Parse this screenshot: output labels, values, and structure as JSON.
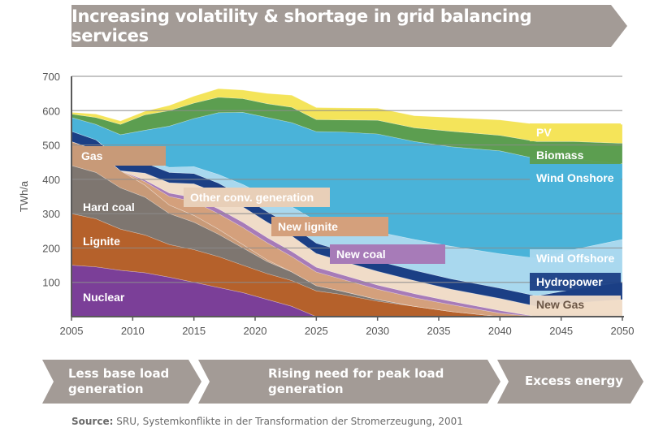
{
  "header": {
    "title": "Increasing volatility & shortage in grid balancing services"
  },
  "phases": [
    {
      "label": "Less base load generation"
    },
    {
      "label": "Rising need for peak load generation"
    },
    {
      "label": "Excess energy"
    }
  ],
  "source": {
    "prefix": "Source:",
    "text": "SRU, Systemkonflikte in der Transformation der Stromerzeugung, 2001"
  },
  "chart_data": {
    "type": "area",
    "stacked": true,
    "title": "",
    "xlabel": "",
    "ylabel": "TWh/a",
    "xlim": [
      2005,
      2050
    ],
    "ylim": [
      0,
      700
    ],
    "xticks": [
      2005,
      2010,
      2015,
      2020,
      2025,
      2030,
      2035,
      2040,
      2045,
      2050
    ],
    "yticks": [
      100,
      200,
      300,
      400,
      500,
      600,
      700
    ],
    "grid": true,
    "x": [
      2005,
      2007,
      2009,
      2011,
      2013,
      2015,
      2017,
      2019,
      2021,
      2023,
      2025,
      2027,
      2030,
      2033,
      2036,
      2040,
      2043,
      2046,
      2050
    ],
    "series": [
      {
        "name": "Nuclear",
        "color": "#7b3f98",
        "label_color": "#ffffff",
        "labeled": true,
        "values": [
          150,
          145,
          135,
          128,
          115,
          100,
          85,
          70,
          50,
          30,
          0,
          0,
          0,
          0,
          0,
          0,
          0,
          0,
          0
        ]
      },
      {
        "name": "Lignite",
        "color": "#b5612b",
        "label_color": "#ffffff",
        "labeled": true,
        "values": [
          150,
          140,
          120,
          110,
          95,
          95,
          90,
          80,
          75,
          75,
          75,
          65,
          45,
          30,
          15,
          0,
          0,
          0,
          0
        ]
      },
      {
        "name": "Hard coal",
        "color": "#7e7670",
        "label_color": "#ffffff",
        "labeled": true,
        "values": [
          140,
          135,
          120,
          110,
          90,
          80,
          65,
          50,
          35,
          25,
          15,
          10,
          5,
          0,
          0,
          0,
          0,
          0,
          0
        ]
      },
      {
        "name": "Gas",
        "color": "#c89a78",
        "label_color": "#ffffff",
        "labeled": true,
        "values": [
          70,
          65,
          50,
          35,
          25,
          20,
          15,
          10,
          5,
          0,
          0,
          0,
          0,
          0,
          0,
          0,
          0,
          0,
          0
        ]
      },
      {
        "name": "Other conv. generation",
        "color": "#e8cfb8",
        "label_color": "#ffffff",
        "labeled": true,
        "values": [
          0,
          0,
          0,
          0,
          0,
          0,
          0,
          0,
          0,
          0,
          0,
          0,
          0,
          0,
          0,
          0,
          0,
          0,
          0
        ]
      },
      {
        "name": "New lignite",
        "color": "#d4a07c",
        "label_color": "#ffffff",
        "labeled": true,
        "values": [
          0,
          0,
          0,
          10,
          25,
          40,
          45,
          50,
          50,
          45,
          40,
          35,
          30,
          25,
          20,
          10,
          0,
          0,
          0
        ]
      },
      {
        "name": "New coal",
        "color": "#a77bb8",
        "label_color": "#ffffff",
        "labeled": true,
        "values": [
          0,
          0,
          0,
          5,
          10,
          12,
          14,
          15,
          15,
          15,
          14,
          13,
          12,
          12,
          10,
          8,
          0,
          0,
          0
        ]
      },
      {
        "name": "New Gas",
        "color": "#f0dcc8",
        "label_color": "#6b5646",
        "labeled": true,
        "values": [
          0,
          0,
          0,
          20,
          30,
          40,
          45,
          45,
          45,
          45,
          40,
          40,
          40,
          38,
          35,
          35,
          30,
          40,
          50
        ]
      },
      {
        "name": "Hydropower",
        "color": "#1b3f85",
        "label_color": "#ffffff",
        "labeled": true,
        "values": [
          30,
          30,
          30,
          30,
          30,
          30,
          30,
          30,
          30,
          30,
          30,
          30,
          30,
          30,
          30,
          30,
          30,
          40,
          50
        ]
      },
      {
        "name": "Wind Offshore",
        "color": "#a9d8ee",
        "label_color": "#ffffff",
        "labeled": true,
        "values": [
          0,
          0,
          5,
          10,
          15,
          20,
          25,
          35,
          45,
          55,
          65,
          75,
          85,
          90,
          95,
          100,
          110,
          115,
          125
        ]
      },
      {
        "name": "Wind Onshore",
        "color": "#4ab3d9",
        "label_color": "#ffffff",
        "labeled": true,
        "values": [
          40,
          45,
          70,
          85,
          120,
          140,
          180,
          210,
          230,
          245,
          260,
          270,
          285,
          285,
          290,
          300,
          290,
          265,
          220
        ]
      },
      {
        "name": "Biomass",
        "color": "#5c9e50",
        "label_color": "#ffffff",
        "labeled": true,
        "values": [
          10,
          20,
          30,
          45,
          45,
          45,
          45,
          40,
          40,
          45,
          35,
          35,
          40,
          40,
          45,
          45,
          50,
          50,
          60
        ]
      },
      {
        "name": "PV",
        "color": "#f4e45a",
        "label_color": "#ffffff",
        "labeled": true,
        "values": [
          5,
          10,
          10,
          10,
          15,
          20,
          25,
          25,
          30,
          35,
          35,
          35,
          35,
          35,
          40,
          45,
          50,
          50,
          55
        ]
      }
    ]
  },
  "colors": {
    "banner": "#a39b96",
    "phase": "#a39b96",
    "axis": "#5a5a5a",
    "grid": "#8c8c8c"
  }
}
